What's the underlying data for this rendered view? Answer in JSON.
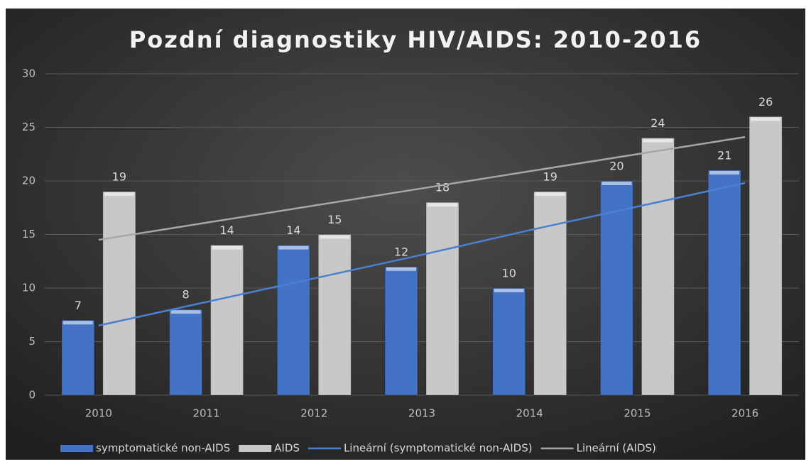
{
  "chart_data": {
    "type": "bar",
    "title": "Pozdní diagnostiky HIV/AIDS: 2010-2016",
    "categories": [
      "2010",
      "2011",
      "2012",
      "2013",
      "2014",
      "2015",
      "2016"
    ],
    "series": [
      {
        "name": "symptomatické non-AIDS",
        "type": "bar",
        "color": "#4472c4",
        "values": [
          7,
          8,
          14,
          12,
          10,
          20,
          21
        ]
      },
      {
        "name": "AIDS",
        "type": "bar",
        "color": "#c8c8c8",
        "values": [
          19,
          14,
          15,
          18,
          19,
          24,
          26
        ]
      },
      {
        "name": "Lineární (symptomatické non-AIDS)",
        "type": "line",
        "color": "#4a7fd4",
        "values": [
          6.5,
          8.7,
          10.9,
          13.1,
          15.4,
          17.6,
          19.8
        ]
      },
      {
        "name": "Lineární (AIDS)",
        "type": "line",
        "color": "#a6a6a6",
        "values": [
          14.5,
          16.1,
          17.7,
          19.3,
          20.9,
          22.5,
          24.1
        ]
      }
    ],
    "ylim": [
      0,
      30
    ],
    "yticks": [
      0,
      5,
      10,
      15,
      20,
      25,
      30
    ],
    "grid": true,
    "legend": "bottom"
  }
}
